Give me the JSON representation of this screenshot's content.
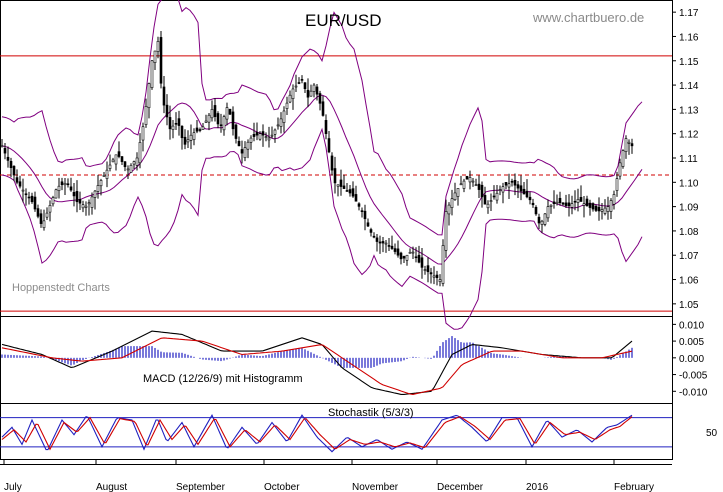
{
  "header": {
    "title": "EUR/USD",
    "site": "www.chartbuero.de",
    "watermark": "Hoppenstedt Charts"
  },
  "colors": {
    "candles": "#000000",
    "bollinger": "#800080",
    "resistance": "#d00000",
    "support_dashed": "#d00000",
    "macd_line": "#000000",
    "signal_line": "#d00000",
    "histogram": "#2020c0",
    "stoch_k": "#2020c0",
    "stoch_d": "#d00000",
    "stoch_bounds": "#2020c0"
  },
  "chart_data": [
    {
      "type": "candlestick",
      "title": "EUR/USD",
      "x_labels": [
        "July",
        "August",
        "September",
        "October",
        "November",
        "December",
        "2016",
        "February"
      ],
      "y_ticks": [
        "1.05",
        "1.06",
        "1.07",
        "1.08",
        "1.09",
        "1.10",
        "1.11",
        "1.12",
        "1.13",
        "1.14",
        "1.15",
        "1.16",
        "1.17"
      ],
      "ylim": [
        1.045,
        1.175
      ],
      "overlays": [
        "Bollinger Bands"
      ],
      "horizontal_lines": [
        {
          "value": 1.152,
          "style": "solid"
        },
        {
          "value": 1.103,
          "style": "dashed"
        },
        {
          "value": 1.047,
          "style": "solid"
        }
      ],
      "close_path": [
        [
          0,
          1.115
        ],
        [
          15,
          1.1
        ],
        [
          30,
          1.092
        ],
        [
          40,
          1.082
        ],
        [
          55,
          1.098
        ],
        [
          65,
          1.1
        ],
        [
          75,
          1.092
        ],
        [
          85,
          1.09
        ],
        [
          95,
          1.098
        ],
        [
          105,
          1.105
        ],
        [
          115,
          1.112
        ],
        [
          125,
          1.105
        ],
        [
          135,
          1.11
        ],
        [
          142,
          1.125
        ],
        [
          150,
          1.15
        ],
        [
          156,
          1.158
        ],
        [
          160,
          1.135
        ],
        [
          168,
          1.122
        ],
        [
          176,
          1.125
        ],
        [
          182,
          1.115
        ],
        [
          190,
          1.12
        ],
        [
          200,
          1.122
        ],
        [
          210,
          1.13
        ],
        [
          218,
          1.122
        ],
        [
          226,
          1.132
        ],
        [
          232,
          1.12
        ],
        [
          240,
          1.112
        ],
        [
          248,
          1.118
        ],
        [
          258,
          1.12
        ],
        [
          268,
          1.118
        ],
        [
          278,
          1.125
        ],
        [
          290,
          1.138
        ],
        [
          300,
          1.142
        ],
        [
          306,
          1.135
        ],
        [
          312,
          1.14
        ],
        [
          320,
          1.13
        ],
        [
          326,
          1.115
        ],
        [
          332,
          1.1
        ],
        [
          340,
          1.098
        ],
        [
          350,
          1.095
        ],
        [
          360,
          1.088
        ],
        [
          368,
          1.08
        ],
        [
          376,
          1.075
        ],
        [
          384,
          1.075
        ],
        [
          392,
          1.072
        ],
        [
          400,
          1.068
        ],
        [
          410,
          1.072
        ],
        [
          420,
          1.065
        ],
        [
          430,
          1.062
        ],
        [
          438,
          1.06
        ],
        [
          444,
          1.088
        ],
        [
          452,
          1.095
        ],
        [
          460,
          1.1
        ],
        [
          468,
          1.102
        ],
        [
          476,
          1.098
        ],
        [
          484,
          1.09
        ],
        [
          492,
          1.094
        ],
        [
          500,
          1.098
        ],
        [
          510,
          1.1
        ],
        [
          520,
          1.096
        ],
        [
          530,
          1.092
        ],
        [
          538,
          1.082
        ],
        [
          546,
          1.09
        ],
        [
          556,
          1.092
        ],
        [
          566,
          1.09
        ],
        [
          576,
          1.093
        ],
        [
          586,
          1.09
        ],
        [
          596,
          1.088
        ],
        [
          606,
          1.09
        ],
        [
          612,
          1.095
        ],
        [
          618,
          1.108
        ],
        [
          624,
          1.118
        ],
        [
          630,
          1.115
        ]
      ]
    },
    {
      "type": "line",
      "title": "MACD (12/26/9) mit Histogramm",
      "y_ticks": [
        "0.010",
        "0.005",
        "0.000",
        "-0.005",
        "-0.010"
      ],
      "ylim": [
        -0.0135,
        0.0125
      ],
      "series": [
        {
          "values": [
            [
              0,
              0.004
            ],
            [
              40,
              0.001
            ],
            [
              70,
              -0.003
            ],
            [
              110,
              0.002
            ],
            [
              150,
              0.008
            ],
            [
              180,
              0.007
            ],
            [
              220,
              0.002
            ],
            [
              260,
              0.002
            ],
            [
              300,
              0.006
            ],
            [
              320,
              0.004
            ],
            [
              340,
              -0.003
            ],
            [
              370,
              -0.009
            ],
            [
              400,
              -0.011
            ],
            [
              430,
              -0.01
            ],
            [
              450,
              0.001
            ],
            [
              470,
              0.004
            ],
            [
              500,
              0.003
            ],
            [
              540,
              0.001
            ],
            [
              580,
              0.0
            ],
            [
              610,
              0.0
            ],
            [
              630,
              0.005
            ]
          ]
        },
        {
          "values": [
            [
              0,
              0.003
            ],
            [
              50,
              0.0
            ],
            [
              80,
              -0.001
            ],
            [
              120,
              0.0
            ],
            [
              160,
              0.006
            ],
            [
              200,
              0.005
            ],
            [
              240,
              0.001
            ],
            [
              280,
              0.002
            ],
            [
              320,
              0.004
            ],
            [
              350,
              -0.002
            ],
            [
              380,
              -0.008
            ],
            [
              410,
              -0.011
            ],
            [
              440,
              -0.009
            ],
            [
              460,
              -0.002
            ],
            [
              490,
              0.002
            ],
            [
              520,
              0.002
            ],
            [
              560,
              0.0
            ],
            [
              600,
              0.0
            ],
            [
              630,
              0.002
            ]
          ]
        }
      ]
    },
    {
      "type": "line",
      "title": "Stochastik (5/3/3)",
      "y_ticks": [
        "50"
      ],
      "ylim": [
        -5,
        110
      ],
      "horizontal_lines": [
        {
          "value": 80
        },
        {
          "value": 20
        }
      ],
      "series": [
        {
          "values": [
            [
              0,
              40
            ],
            [
              10,
              60
            ],
            [
              20,
              25
            ],
            [
              30,
              75
            ],
            [
              45,
              10
            ],
            [
              60,
              75
            ],
            [
              72,
              45
            ],
            [
              85,
              85
            ],
            [
              100,
              20
            ],
            [
              115,
              80
            ],
            [
              130,
              75
            ],
            [
              142,
              15
            ],
            [
              155,
              80
            ],
            [
              165,
              30
            ],
            [
              180,
              70
            ],
            [
              192,
              20
            ],
            [
              210,
              85
            ],
            [
              225,
              15
            ],
            [
              240,
              60
            ],
            [
              255,
              25
            ],
            [
              270,
              70
            ],
            [
              285,
              30
            ],
            [
              300,
              85
            ],
            [
              315,
              40
            ],
            [
              330,
              10
            ],
            [
              345,
              40
            ],
            [
              360,
              20
            ],
            [
              375,
              35
            ],
            [
              390,
              15
            ],
            [
              405,
              30
            ],
            [
              420,
              15
            ],
            [
              440,
              75
            ],
            [
              455,
              85
            ],
            [
              470,
              60
            ],
            [
              485,
              30
            ],
            [
              500,
              80
            ],
            [
              515,
              80
            ],
            [
              530,
              20
            ],
            [
              545,
              75
            ],
            [
              560,
              40
            ],
            [
              575,
              55
            ],
            [
              590,
              30
            ],
            [
              605,
              60
            ],
            [
              615,
              65
            ],
            [
              630,
              85
            ]
          ]
        },
        {
          "values": [
            [
              0,
              35
            ],
            [
              12,
              55
            ],
            [
              24,
              30
            ],
            [
              35,
              70
            ],
            [
              48,
              15
            ],
            [
              62,
              70
            ],
            [
              75,
              50
            ],
            [
              88,
              80
            ],
            [
              103,
              25
            ],
            [
              118,
              78
            ],
            [
              133,
              72
            ],
            [
              145,
              20
            ],
            [
              158,
              75
            ],
            [
              170,
              35
            ],
            [
              183,
              65
            ],
            [
              196,
              25
            ],
            [
              213,
              80
            ],
            [
              228,
              20
            ],
            [
              243,
              55
            ],
            [
              258,
              30
            ],
            [
              273,
              65
            ],
            [
              288,
              35
            ],
            [
              303,
              80
            ],
            [
              318,
              45
            ],
            [
              333,
              15
            ],
            [
              348,
              35
            ],
            [
              363,
              25
            ],
            [
              378,
              30
            ],
            [
              393,
              20
            ],
            [
              408,
              28
            ],
            [
              423,
              18
            ],
            [
              443,
              70
            ],
            [
              458,
              82
            ],
            [
              473,
              62
            ],
            [
              488,
              35
            ],
            [
              503,
              75
            ],
            [
              518,
              78
            ],
            [
              533,
              25
            ],
            [
              548,
              70
            ],
            [
              563,
              45
            ],
            [
              578,
              50
            ],
            [
              593,
              35
            ],
            [
              608,
              55
            ],
            [
              618,
              62
            ],
            [
              630,
              82
            ]
          ]
        }
      ]
    }
  ]
}
